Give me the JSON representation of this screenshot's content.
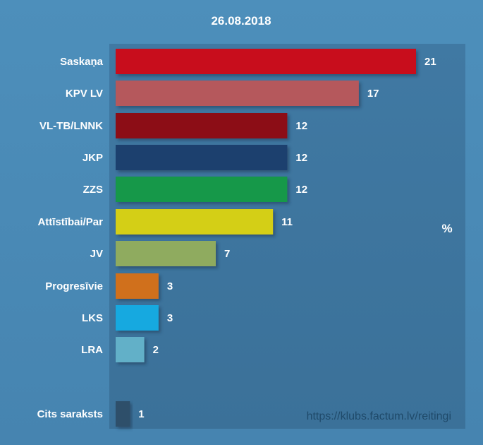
{
  "chart_data": {
    "type": "bar",
    "orientation": "horizontal",
    "title": "26.08.2018",
    "unit": "%",
    "source": "https://klubs.factum.lv/reitingi",
    "categories": [
      "Saskaņa",
      "KPV LV",
      "VL-TB/LNNK",
      "JKP",
      "ZZS",
      "Attīstībai/Par",
      "JV",
      "Progresīvie",
      "LKS",
      "LRA",
      "Cits saraksts"
    ],
    "values": [
      21,
      17,
      12,
      12,
      12,
      11,
      7,
      3,
      3,
      2,
      1
    ],
    "value_labels": [
      "21",
      "17",
      "12",
      "12",
      "12",
      "11",
      "7",
      "3",
      "3",
      "2",
      "1"
    ],
    "colors": [
      "#c8101a",
      "#b5595c",
      "#8c1015",
      "#1f3f6e",
      "#14984a",
      "#d4cf15",
      "#8fab5e",
      "#d0701e",
      "#19a9e0",
      "#62b0c8",
      "#2f4f6a"
    ],
    "xlim": [
      0,
      21
    ],
    "grid": false,
    "legend": "none"
  }
}
